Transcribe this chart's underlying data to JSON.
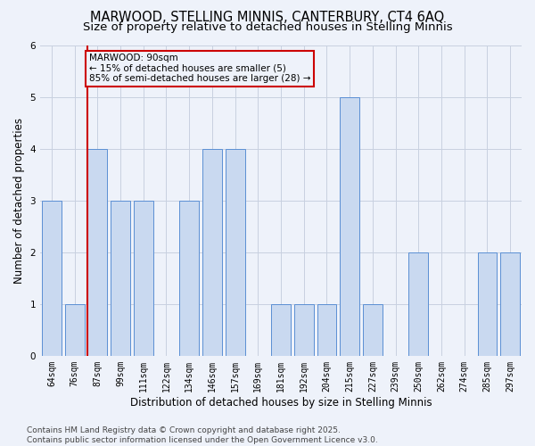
{
  "title1": "MARWOOD, STELLING MINNIS, CANTERBURY, CT4 6AQ",
  "title2": "Size of property relative to detached houses in Stelling Minnis",
  "xlabel": "Distribution of detached houses by size in Stelling Minnis",
  "ylabel": "Number of detached properties",
  "categories": [
    "64sqm",
    "76sqm",
    "87sqm",
    "99sqm",
    "111sqm",
    "122sqm",
    "134sqm",
    "146sqm",
    "157sqm",
    "169sqm",
    "181sqm",
    "192sqm",
    "204sqm",
    "215sqm",
    "227sqm",
    "239sqm",
    "250sqm",
    "262sqm",
    "274sqm",
    "285sqm",
    "297sqm"
  ],
  "values": [
    3,
    1,
    4,
    3,
    3,
    0,
    3,
    4,
    4,
    0,
    1,
    1,
    1,
    5,
    1,
    0,
    2,
    0,
    0,
    2,
    2
  ],
  "bar_color": "#c9d9f0",
  "bar_edge_color": "#5b8fd4",
  "highlight_index": 2,
  "highlight_color": "#cc0000",
  "annotation_text": "MARWOOD: 90sqm\n← 15% of detached houses are smaller (5)\n85% of semi-detached houses are larger (28) →",
  "ylim": [
    0,
    6
  ],
  "yticks": [
    0,
    1,
    2,
    3,
    4,
    5,
    6
  ],
  "footer1": "Contains HM Land Registry data © Crown copyright and database right 2025.",
  "footer2": "Contains public sector information licensed under the Open Government Licence v3.0.",
  "background_color": "#eef2fa",
  "grid_color": "#c8d0e0",
  "title1_fontsize": 10.5,
  "title2_fontsize": 9.5,
  "axis_label_fontsize": 8.5,
  "tick_fontsize": 7,
  "footer_fontsize": 6.5,
  "annot_fontsize": 7.5
}
